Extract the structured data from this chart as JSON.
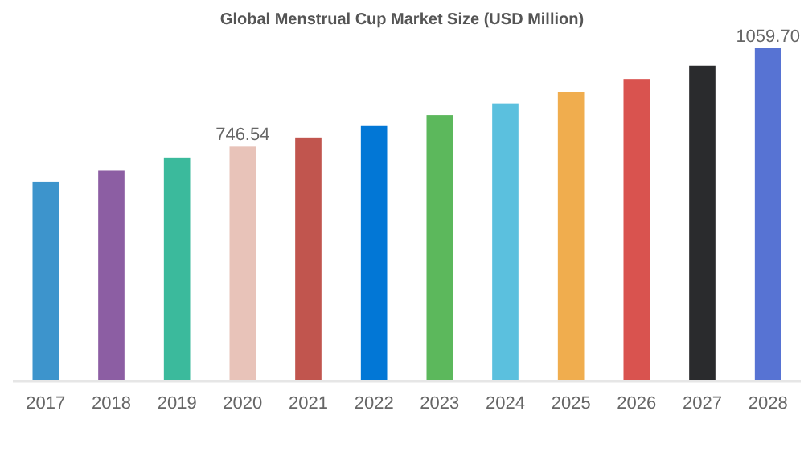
{
  "chart_data": {
    "type": "bar",
    "title": "Global Menstrual Cup  Market Size (USD Million)",
    "categories": [
      "2017",
      "2018",
      "2019",
      "2020",
      "2021",
      "2022",
      "2023",
      "2024",
      "2025",
      "2026",
      "2027",
      "2028"
    ],
    "values": [
      635,
      672,
      712,
      746.54,
      776,
      812,
      847,
      884,
      919,
      962,
      1004,
      1059.7
    ],
    "value_labels": [
      null,
      null,
      null,
      "746.54",
      null,
      null,
      null,
      null,
      null,
      null,
      null,
      "1059.70"
    ],
    "colors": [
      "#3d94cc",
      "#8c5ea3",
      "#3bba9c",
      "#e8c3b9",
      "#c1554e",
      "#0277d6",
      "#5cb85c",
      "#5bc0de",
      "#f0ad4e",
      "#d9534f",
      "#2a2b2d",
      "#5773d3"
    ],
    "tick_labels": "x"
  }
}
